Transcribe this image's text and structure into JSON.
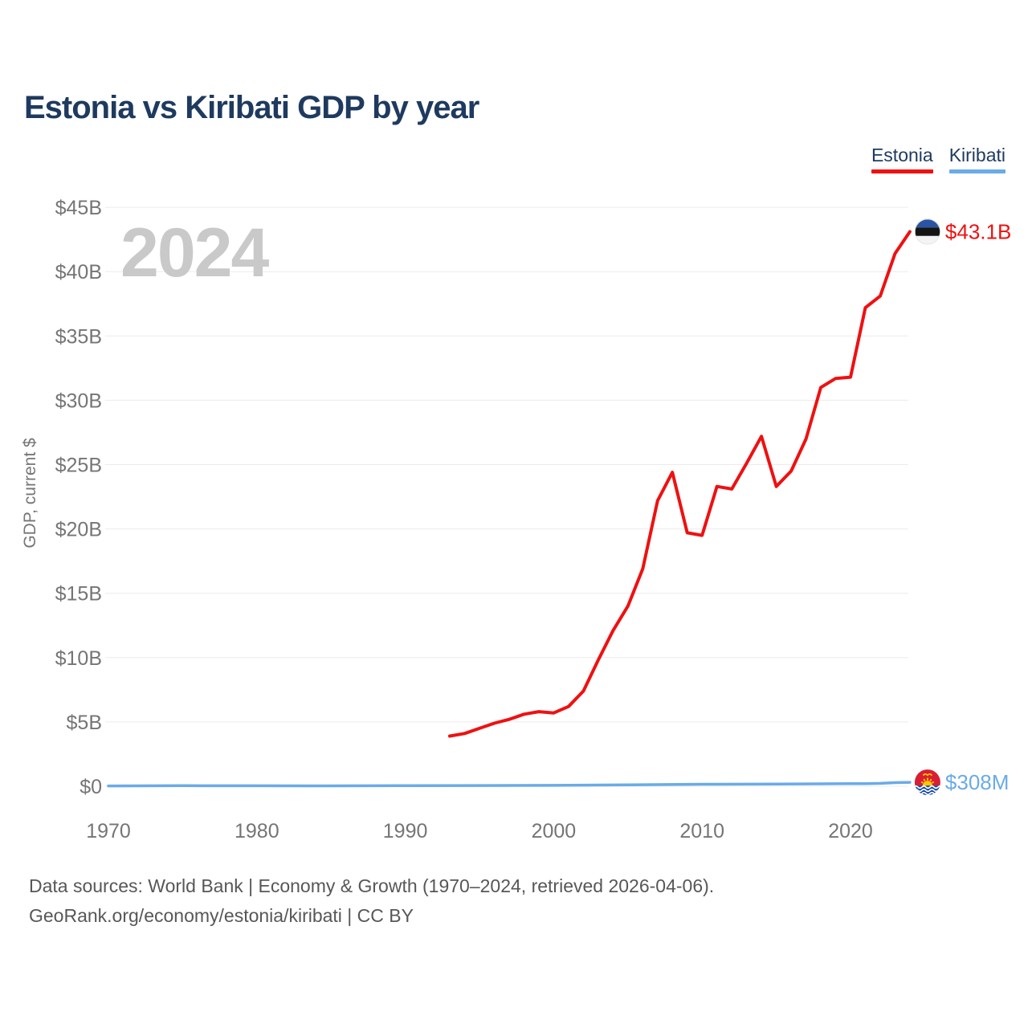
{
  "header": {
    "title": "Estonia vs Kiribati GDP by year"
  },
  "legend": {
    "items": [
      {
        "label": "Estonia",
        "color": "#ee1111"
      },
      {
        "label": "Kiribati",
        "color": "#6aabe8"
      }
    ]
  },
  "watermark": "2024",
  "colors": {
    "title": "#1e3a5f",
    "axis_text": "#757575",
    "gridline": "#ececec",
    "watermark": "#c9c9c9",
    "footer_text": "#575757",
    "estonia_red": "#ee1111",
    "kiribati_blue": "#6aabe8"
  },
  "chart_data": {
    "type": "line",
    "title": "Estonia vs Kiribati GDP by year",
    "xlabel": "",
    "ylabel": "GDP, current $",
    "xlim": [
      1970,
      2024
    ],
    "ylim": [
      0,
      45000000000
    ],
    "grid": true,
    "legend_position": "top-right",
    "x_ticks": [
      1970,
      1980,
      1990,
      2000,
      2010,
      2020
    ],
    "y_ticks": [
      {
        "value": 0,
        "label": "$0"
      },
      {
        "value": 5,
        "label": "$5B"
      },
      {
        "value": 10,
        "label": "$10B"
      },
      {
        "value": 15,
        "label": "$15B"
      },
      {
        "value": 20,
        "label": "$20B"
      },
      {
        "value": 25,
        "label": "$25B"
      },
      {
        "value": 30,
        "label": "$30B"
      },
      {
        "value": 35,
        "label": "$35B"
      },
      {
        "value": 40,
        "label": "$40B"
      },
      {
        "value": 45,
        "label": "$45B"
      }
    ],
    "series": [
      {
        "name": "Estonia",
        "color": "#ee1111",
        "unit": "USD billions",
        "end_label": "$43.1B",
        "flag_icon": "estonia-flag-icon",
        "points": [
          [
            1993,
            3.9
          ],
          [
            1994,
            4.1
          ],
          [
            1995,
            4.5
          ],
          [
            1996,
            4.9
          ],
          [
            1997,
            5.2
          ],
          [
            1998,
            5.6
          ],
          [
            1999,
            5.8
          ],
          [
            2000,
            5.7
          ],
          [
            2001,
            6.2
          ],
          [
            2002,
            7.4
          ],
          [
            2003,
            9.8
          ],
          [
            2004,
            12.1
          ],
          [
            2005,
            14.0
          ],
          [
            2006,
            16.9
          ],
          [
            2007,
            22.2
          ],
          [
            2008,
            24.4
          ],
          [
            2009,
            19.7
          ],
          [
            2010,
            19.5
          ],
          [
            2011,
            23.3
          ],
          [
            2012,
            23.1
          ],
          [
            2013,
            25.1
          ],
          [
            2014,
            27.2
          ],
          [
            2015,
            23.3
          ],
          [
            2016,
            24.5
          ],
          [
            2017,
            27.0
          ],
          [
            2018,
            31.0
          ],
          [
            2019,
            31.7
          ],
          [
            2020,
            31.8
          ],
          [
            2021,
            37.2
          ],
          [
            2022,
            38.1
          ],
          [
            2023,
            41.4
          ],
          [
            2024,
            43.1
          ]
        ]
      },
      {
        "name": "Kiribati",
        "color": "#6aabe8",
        "unit": "USD millions",
        "end_label": "$308M",
        "flag_icon": "kiribati-flag-icon",
        "points": [
          [
            1970,
            23
          ],
          [
            1975,
            45
          ],
          [
            1980,
            36
          ],
          [
            1985,
            29
          ],
          [
            1990,
            46
          ],
          [
            1995,
            57
          ],
          [
            2000,
            68
          ],
          [
            2005,
            111
          ],
          [
            2010,
            156
          ],
          [
            2015,
            175
          ],
          [
            2020,
            199
          ],
          [
            2021,
            207
          ],
          [
            2022,
            223
          ],
          [
            2023,
            279
          ],
          [
            2024,
            308
          ]
        ]
      }
    ]
  },
  "footer": {
    "line1": "Data sources: World Bank | Economy & Growth (1970–2024, retrieved 2026-04-06).",
    "line2": "GeoRank.org/economy/estonia/kiribati | CC BY"
  }
}
